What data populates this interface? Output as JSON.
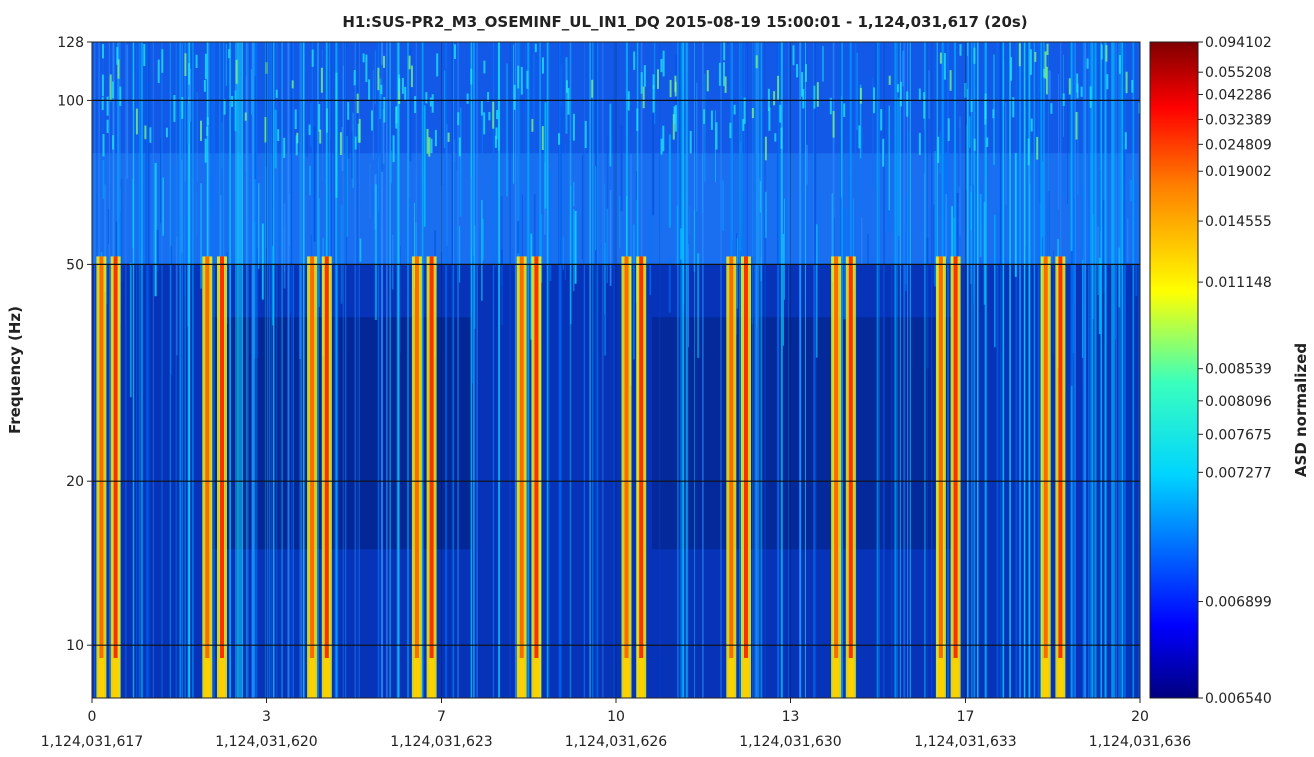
{
  "chart_data": {
    "type": "heatmap",
    "title": "H1:SUS-PR2_M3_OSEMINF_UL_IN1_DQ 2015-08-19 15:00:01 - 1,124,031,617 (20s)",
    "xlabel": "",
    "ylabel": "Frequency (Hz)",
    "colorbar_label": "ASD normalized",
    "y_scale": "log",
    "xlim": [
      0,
      20
    ],
    "ylim": [
      8,
      128
    ],
    "grid": true,
    "colormap": "jet",
    "x_ticks": [
      {
        "value": 0,
        "label": "0",
        "gps": "1,124,031,617"
      },
      {
        "value": 3.33,
        "label": "3",
        "gps": "1,124,031,620"
      },
      {
        "value": 6.67,
        "label": "7",
        "gps": "1,124,031,623"
      },
      {
        "value": 10,
        "label": "10",
        "gps": "1,124,031,626"
      },
      {
        "value": 13.33,
        "label": "13",
        "gps": "1,124,031,630"
      },
      {
        "value": 16.67,
        "label": "17",
        "gps": "1,124,031,633"
      },
      {
        "value": 20,
        "label": "20",
        "gps": "1,124,031,636"
      }
    ],
    "y_ticks": [
      {
        "value": 10,
        "label": "10"
      },
      {
        "value": 20,
        "label": "20"
      },
      {
        "value": 50,
        "label": "50"
      },
      {
        "value": 100,
        "label": "100"
      },
      {
        "value": 128,
        "label": "128"
      }
    ],
    "colorbar_ticks": [
      "0.094102",
      "0.055208",
      "0.042286",
      "0.032389",
      "0.024809",
      "0.019002",
      "0.014555",
      "0.011148",
      "0.008539",
      "0.008096",
      "0.007675",
      "0.007277",
      "0.006899",
      "0.006540"
    ],
    "glitch_times": [
      0.18,
      0.45,
      2.2,
      2.48,
      4.2,
      4.48,
      6.2,
      6.48,
      8.2,
      8.48,
      10.2,
      10.48,
      12.2,
      12.48,
      14.2,
      14.48,
      16.2,
      16.48,
      18.2,
      18.48
    ],
    "cutoff_frequency": 50
  }
}
